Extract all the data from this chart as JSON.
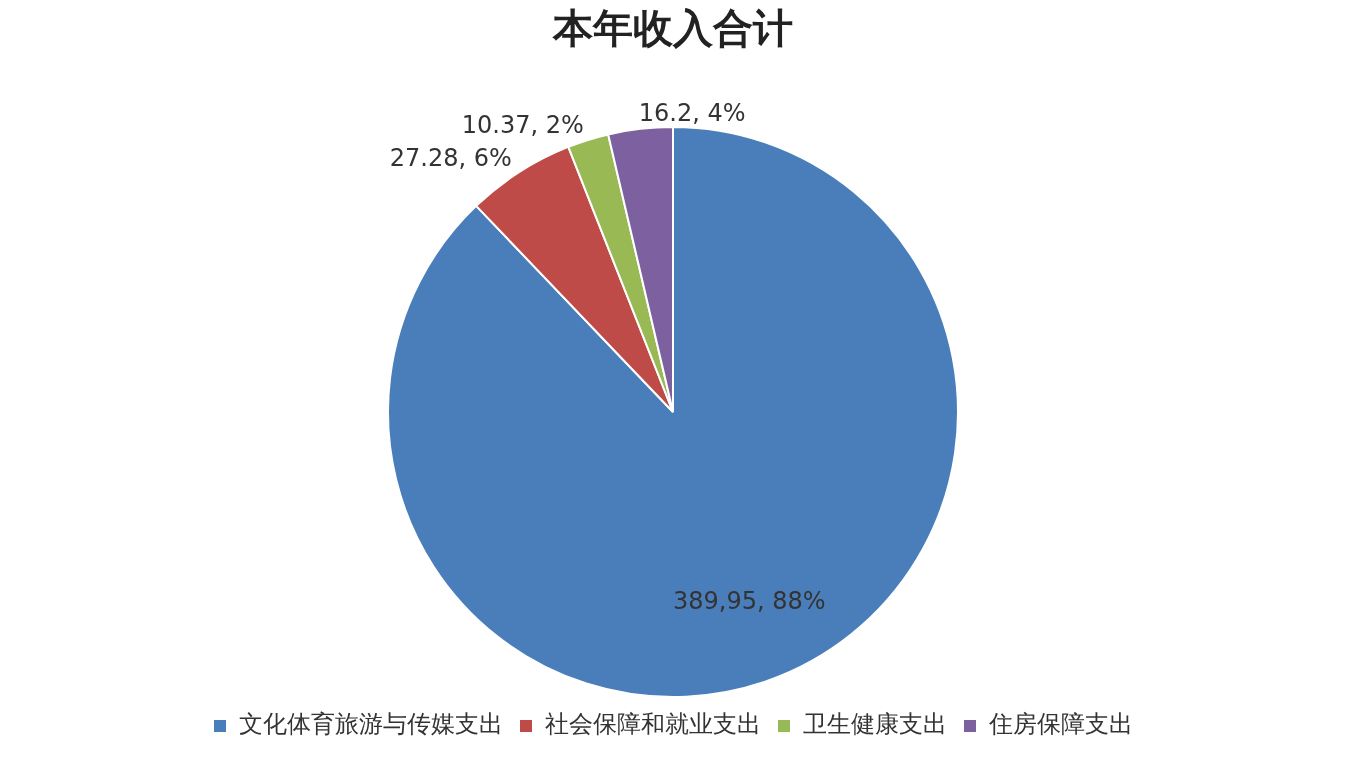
{
  "chart_data": {
    "type": "pie",
    "title": "本年收入合计",
    "categories": [
      "文化体育旅游与传媒支出",
      "社会保障和就业支出",
      "卫生健康支出",
      "住房保障支出"
    ],
    "values": [
      389.95,
      27.28,
      10.37,
      16.2
    ],
    "colors": [
      "#4a7ebb",
      "#be4b48",
      "#98b954",
      "#7d60a0"
    ],
    "value_labels": [
      "389,95, 88%",
      "27.28, 6%",
      "10.37, 2%",
      "16.2, 4%"
    ],
    "legend": "bottom"
  }
}
